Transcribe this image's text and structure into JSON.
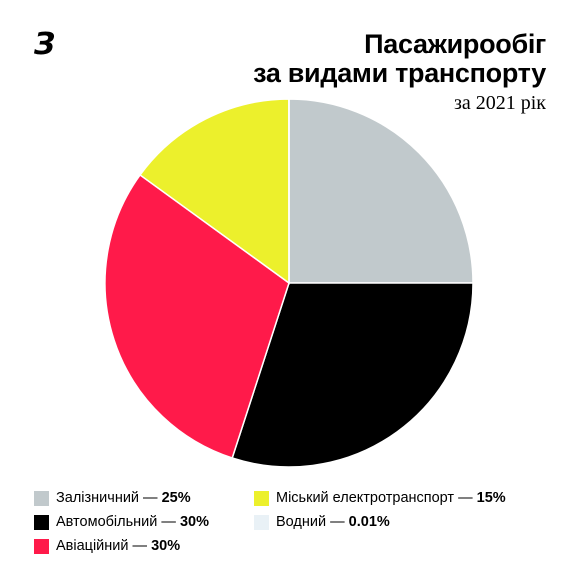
{
  "header": {
    "logo": "З",
    "title_line1": "Пасажирообіг",
    "title_line2": "за видами транспорту",
    "subtitle": "за 2021 рік"
  },
  "chart_data": {
    "type": "pie",
    "title": "Пасажирообіг за видами транспорту",
    "subtitle": "за 2021 рік",
    "legend_position": "bottom",
    "slices": [
      {
        "label": "Залізничний",
        "value": 25,
        "display": "25%",
        "color": "#c1c9cc"
      },
      {
        "label": "Автомобільний",
        "value": 30,
        "display": "30%",
        "color": "#000000"
      },
      {
        "label": "Авіаційний",
        "value": 30,
        "display": "30%",
        "color": "#ff1a4a"
      },
      {
        "label": "Міський електротранспорт",
        "value": 15,
        "display": "15%",
        "color": "#ecf02c"
      },
      {
        "label": "Водний",
        "value": 0.01,
        "display": "0.01%",
        "color": "#e9f1f6"
      }
    ],
    "legend": [
      {
        "slice": 0,
        "column": 0
      },
      {
        "slice": 3,
        "column": 1
      },
      {
        "slice": 1,
        "column": 0
      },
      {
        "slice": 4,
        "column": 1
      },
      {
        "slice": 2,
        "column": 0
      }
    ]
  }
}
